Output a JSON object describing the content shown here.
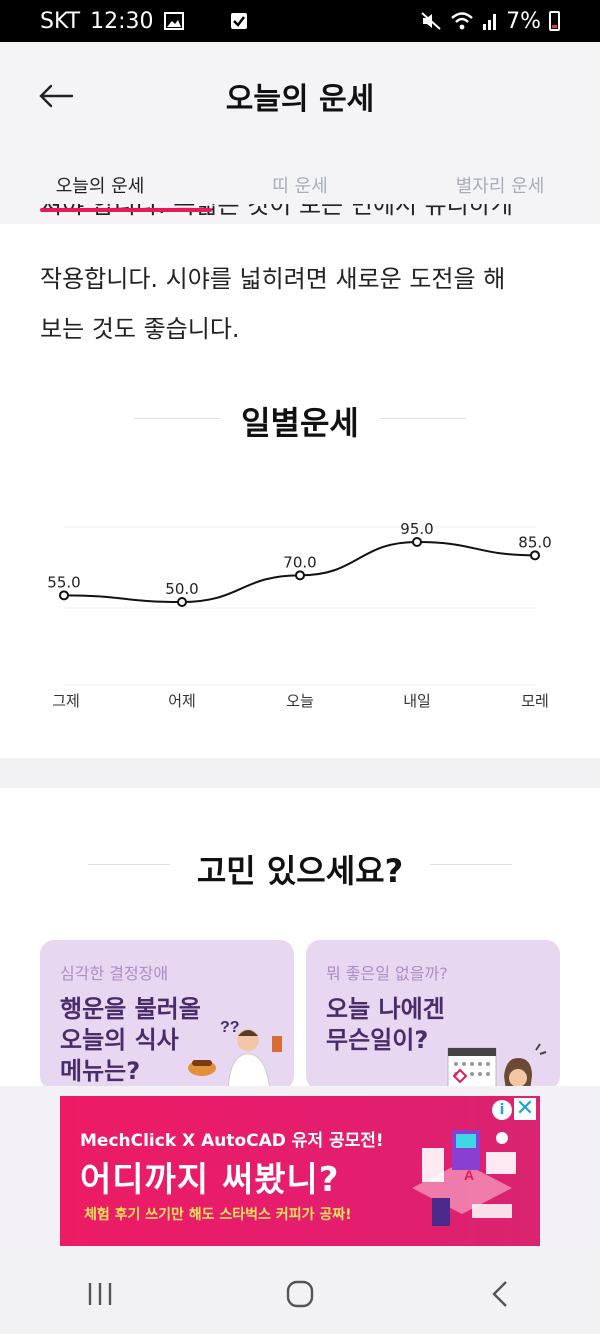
{
  "status_bar": {
    "carrier": "SKT",
    "time": "12:30",
    "battery": "7%"
  },
  "header": {
    "title": "오늘의 운세",
    "tabs": [
      {
        "label": "오늘의 운세",
        "active": true
      },
      {
        "label": "띠 운세",
        "active": false
      },
      {
        "label": "별자리 운세",
        "active": false
      }
    ]
  },
  "fortune_text": {
    "partial_line": "져야 합니다. 녹넓은 것이 보는 면에서 유리하게",
    "line2": "작용합니다. 시야를 넓히려면 새로운 도전을 해",
    "line3": "보는 것도 좋습니다."
  },
  "daily_section": {
    "title": "일별운세"
  },
  "chart_data": {
    "type": "line",
    "categories": [
      "그제",
      "어제",
      "오늘",
      "내일",
      "모레"
    ],
    "values": [
      55.0,
      50.0,
      70.0,
      95.0,
      85.0
    ],
    "value_labels": [
      "55.0",
      "50.0",
      "70.0",
      "95.0",
      "85.0"
    ],
    "grid": true,
    "color": "#111111"
  },
  "worry_section": {
    "title": "고민 있으세요?",
    "cards": [
      {
        "sub": "심각한 결정장애",
        "main": "행운을 불러올\n오늘의 식사\n메뉴는?"
      },
      {
        "sub": "뭐 좋은일 없을까?",
        "main": "오늘 나에겐\n무슨일이?"
      }
    ]
  },
  "ad": {
    "line1": "MechClick  X AutoCAD 유저 공모전!",
    "line2": "어디까지 써봤니?",
    "line3": "체험 후기 쓰기만 해도 스타벅스 커피가 공짜!"
  },
  "colors": {
    "accent": "#e8195b",
    "card_bg": "#e7d7f1",
    "card_text": "#4a2c6b",
    "ad_bg": "#ec1c64"
  }
}
